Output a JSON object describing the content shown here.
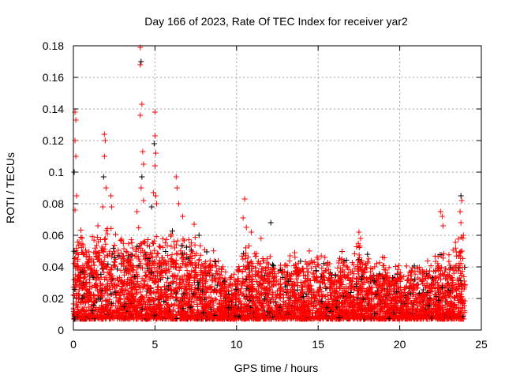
{
  "chart_data": {
    "type": "scatter",
    "title": "Day 166 of 2023, Rate Of TEC Index for receiver yar2",
    "xlabel": "GPS time / hours",
    "ylabel": "ROTI / TECUs",
    "xlim": [
      0,
      25
    ],
    "ylim": [
      0,
      0.18
    ],
    "xticks": [
      "0",
      "5",
      "10",
      "15",
      "20",
      "25"
    ],
    "yticks": [
      "0",
      "0.02",
      "0.04",
      "0.06",
      "0.08",
      "0.1",
      "0.12",
      "0.14",
      "0.16",
      "0.18"
    ],
    "grid": true,
    "marker": "+",
    "colors": {
      "primary": "#ff0000",
      "secondary": "#000000"
    },
    "data_span_hours": [
      0,
      24
    ],
    "baseline_min": 0.003,
    "envelope": {
      "x": [
        0,
        0.5,
        1,
        1.5,
        2,
        2.5,
        3,
        3.5,
        4,
        4.5,
        5,
        5.5,
        6,
        6.5,
        7,
        7.5,
        8,
        8.5,
        9,
        9.5,
        10,
        10.5,
        11,
        11.5,
        12,
        12.5,
        13,
        13.5,
        14,
        14.5,
        15,
        15.5,
        16,
        16.5,
        17,
        17.5,
        18,
        18.5,
        19,
        19.5,
        20,
        20.5,
        21,
        21.5,
        22,
        22.5,
        23,
        23.5,
        24
      ],
      "y": [
        0.045,
        0.05,
        0.045,
        0.05,
        0.055,
        0.05,
        0.045,
        0.045,
        0.055,
        0.05,
        0.05,
        0.045,
        0.05,
        0.05,
        0.045,
        0.045,
        0.04,
        0.04,
        0.035,
        0.025,
        0.03,
        0.045,
        0.045,
        0.04,
        0.04,
        0.035,
        0.035,
        0.04,
        0.035,
        0.04,
        0.04,
        0.035,
        0.03,
        0.04,
        0.03,
        0.045,
        0.04,
        0.035,
        0.035,
        0.03,
        0.03,
        0.03,
        0.035,
        0.035,
        0.035,
        0.04,
        0.035,
        0.045,
        0.05
      ]
    },
    "series": [
      {
        "name": "ROTI peaks",
        "points": [
          [
            0.1,
            0.138
          ],
          [
            0.15,
            0.133
          ],
          [
            0.1,
            0.12
          ],
          [
            0.15,
            0.11
          ],
          [
            0.05,
            0.1
          ],
          [
            0.2,
            0.085
          ],
          [
            0.1,
            0.076
          ],
          [
            1.9,
            0.124
          ],
          [
            1.95,
            0.12
          ],
          [
            1.9,
            0.11
          ],
          [
            1.85,
            0.097
          ],
          [
            2.0,
            0.09
          ],
          [
            1.8,
            0.078
          ],
          [
            2.3,
            0.085
          ],
          [
            2.35,
            0.078
          ],
          [
            4.1,
            0.179
          ],
          [
            4.15,
            0.17
          ],
          [
            4.1,
            0.168
          ],
          [
            4.2,
            0.143
          ],
          [
            4.1,
            0.136
          ],
          [
            4.25,
            0.113
          ],
          [
            4.3,
            0.105
          ],
          [
            4.2,
            0.097
          ],
          [
            4.15,
            0.09
          ],
          [
            4.3,
            0.082
          ],
          [
            3.9,
            0.075
          ],
          [
            5.0,
            0.138
          ],
          [
            5.0,
            0.123
          ],
          [
            4.95,
            0.118
          ],
          [
            5.05,
            0.112
          ],
          [
            5.0,
            0.104
          ],
          [
            4.9,
            0.087
          ],
          [
            5.05,
            0.085
          ],
          [
            5.1,
            0.08
          ],
          [
            4.8,
            0.078
          ],
          [
            6.3,
            0.097
          ],
          [
            6.35,
            0.09
          ],
          [
            6.45,
            0.08
          ],
          [
            6.7,
            0.072
          ],
          [
            7.4,
            0.067
          ],
          [
            7.7,
            0.06
          ],
          [
            10.5,
            0.083
          ],
          [
            10.4,
            0.071
          ],
          [
            10.6,
            0.065
          ],
          [
            10.9,
            0.062
          ],
          [
            11.5,
            0.058
          ],
          [
            12.1,
            0.068
          ],
          [
            17.5,
            0.062
          ],
          [
            17.6,
            0.058
          ],
          [
            22.5,
            0.075
          ],
          [
            22.6,
            0.072
          ],
          [
            22.65,
            0.066
          ],
          [
            23.75,
            0.085
          ],
          [
            23.8,
            0.082
          ],
          [
            23.7,
            0.075
          ],
          [
            23.75,
            0.068
          ],
          [
            23.9,
            0.06
          ]
        ]
      }
    ]
  }
}
